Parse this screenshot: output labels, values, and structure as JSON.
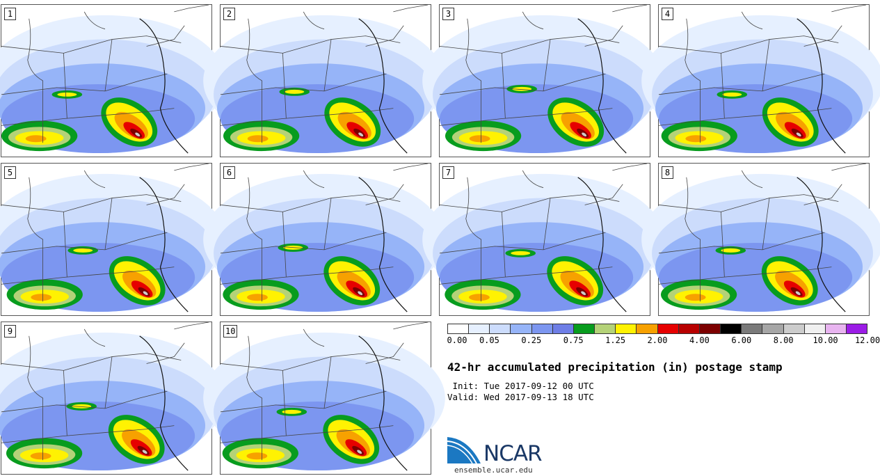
{
  "panels": [
    {
      "label": "1"
    },
    {
      "label": "2"
    },
    {
      "label": "3"
    },
    {
      "label": "4"
    },
    {
      "label": "5"
    },
    {
      "label": "6"
    },
    {
      "label": "7"
    },
    {
      "label": "8"
    },
    {
      "label": "9"
    },
    {
      "label": "10"
    }
  ],
  "legend": {
    "colors": [
      "#ffffff",
      "#e6f0ff",
      "#ccdcfc",
      "#96b4f8",
      "#7c96f0",
      "#6e7ee6",
      "#089c1e",
      "#b4d278",
      "#fff202",
      "#f7a100",
      "#e60000",
      "#b80000",
      "#7c0000",
      "#000000",
      "#7a7a7a",
      "#a6a6a6",
      "#cccccc",
      "#f0f0f0",
      "#e8b4f0",
      "#9b1ce6"
    ],
    "tick_labels": [
      "0.00",
      "0.05",
      "0.25",
      "0.75",
      "1.25",
      "2.00",
      "4.00",
      "6.00",
      "8.00",
      "10.00",
      "12.00"
    ]
  },
  "title": "42-hr accumulated precipitation (in) postage stamp",
  "init_line": " Init: Tue 2017-09-12 00 UTC",
  "valid_line": "Valid: Wed 2017-09-13 18 UTC",
  "logo_text": "NCAR",
  "url": "ensemble.ucar.edu"
}
